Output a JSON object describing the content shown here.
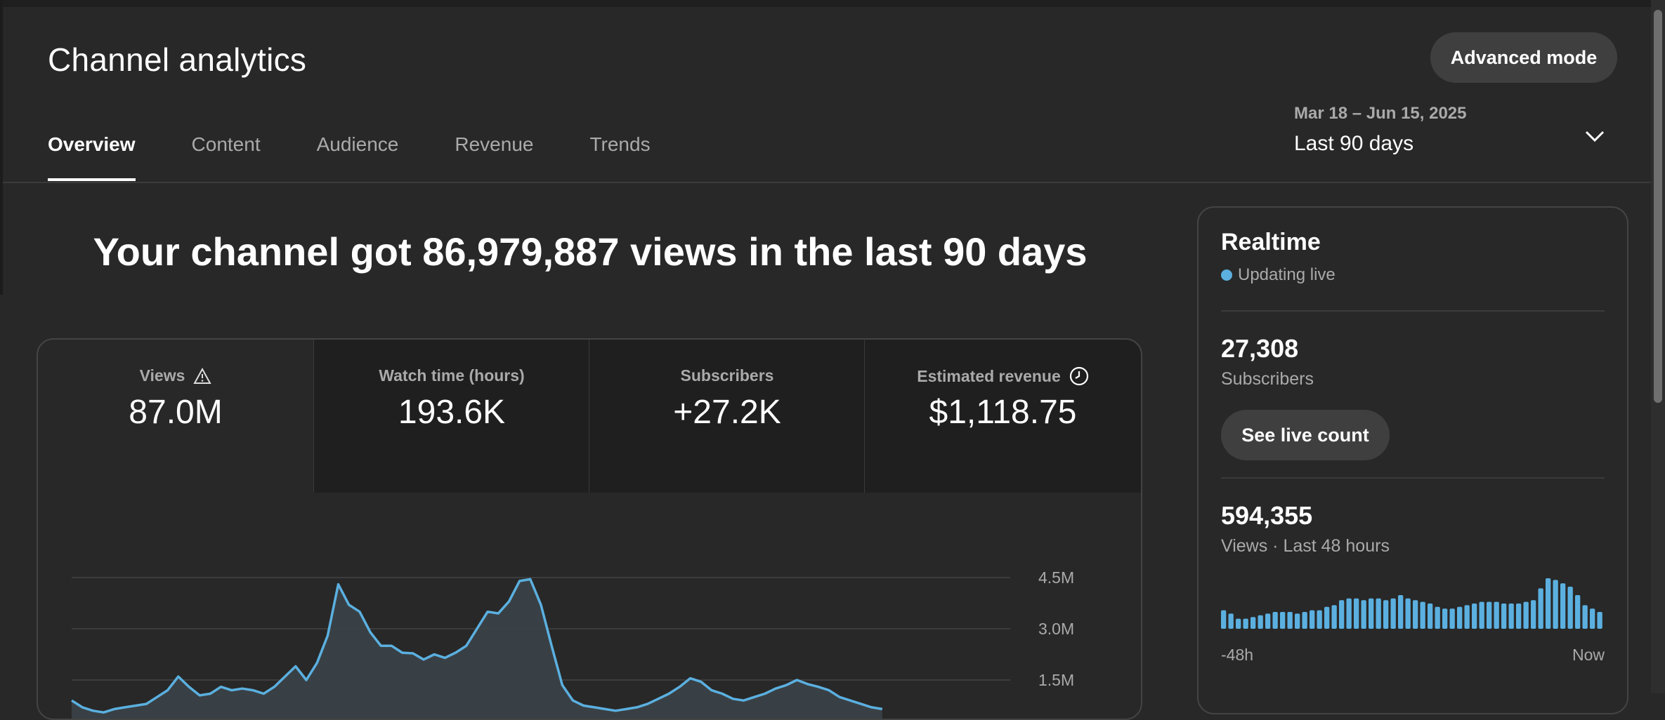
{
  "header": {
    "title": "Channel analytics",
    "advanced_mode_label": "Advanced mode"
  },
  "tabs": [
    {
      "label": "Overview",
      "active": true
    },
    {
      "label": "Content",
      "active": false
    },
    {
      "label": "Audience",
      "active": false
    },
    {
      "label": "Revenue",
      "active": false
    },
    {
      "label": "Trends",
      "active": false
    }
  ],
  "date_picker": {
    "range": "Mar 18 – Jun 15, 2025",
    "label": "Last 90 days",
    "icon": "chevron-down-icon"
  },
  "headline": "Your channel got 86,979,887 views in the last 90 days",
  "metrics": [
    {
      "label": "Views",
      "value": "87.0M",
      "icon": "warning-icon",
      "selected": true
    },
    {
      "label": "Watch time (hours)",
      "value": "193.6K",
      "selected": false
    },
    {
      "label": "Subscribers",
      "value": "+27.2K",
      "selected": false
    },
    {
      "label": "Estimated revenue",
      "value": "$1,118.75",
      "icon": "clock-icon",
      "selected": false
    }
  ],
  "colors": {
    "accent": "#5bb0e0",
    "background": "#282828",
    "card_inactive": "#1f1f1f",
    "text_secondary": "#aaaaaa"
  },
  "chart_data": {
    "type": "area",
    "ytick_labels": [
      "4.5M",
      "3.0M",
      "1.5M"
    ],
    "yticks": [
      4500000,
      3000000,
      1500000
    ],
    "ylim": [
      0,
      5000000
    ],
    "grid": true,
    "series": [
      {
        "values": [
          900000,
          700000,
          600000,
          550000,
          650000,
          700000,
          750000,
          800000,
          1000000,
          1200000,
          1600000,
          1300000,
          1050000,
          1100000,
          1300000,
          1200000,
          1250000,
          1200000,
          1100000,
          1300000,
          1600000,
          1900000,
          1500000,
          2000000,
          2800000,
          4300000,
          3700000,
          3500000,
          2900000,
          2500000,
          2500000,
          2300000,
          2280000,
          2100000,
          2250000,
          2150000,
          2300000,
          2500000,
          3000000,
          3500000,
          3450000,
          3800000,
          4400000,
          4450000,
          3700000,
          2500000,
          1350000,
          900000,
          750000,
          700000,
          650000,
          600000,
          650000,
          700000,
          800000,
          950000,
          1100000,
          1300000,
          1550000,
          1450000,
          1200000,
          1100000,
          950000,
          900000,
          1000000,
          1100000,
          1250000,
          1350000,
          1500000,
          1380000,
          1300000,
          1200000,
          1000000,
          900000,
          800000,
          700000,
          650000
        ]
      }
    ]
  },
  "realtime": {
    "title": "Realtime",
    "status": "Updating live",
    "subscribers_value": "27,308",
    "subscribers_label": "Subscribers",
    "see_live_count_label": "See live count",
    "views_value": "594,355",
    "views_label": "Views · Last 48 hours",
    "axis_start": "-48h",
    "axis_end": "Now",
    "bars": [
      11,
      9,
      6,
      6,
      7,
      8,
      9,
      10,
      10,
      10,
      9,
      10,
      11,
      11,
      13,
      14,
      17,
      18,
      18,
      17,
      18,
      18,
      17,
      18,
      20,
      18,
      17,
      16,
      15,
      13,
      12,
      12,
      13,
      14,
      15,
      16,
      16,
      16,
      15,
      15,
      15,
      16,
      17,
      24,
      30,
      29,
      27,
      25,
      20,
      14,
      12,
      10
    ]
  }
}
